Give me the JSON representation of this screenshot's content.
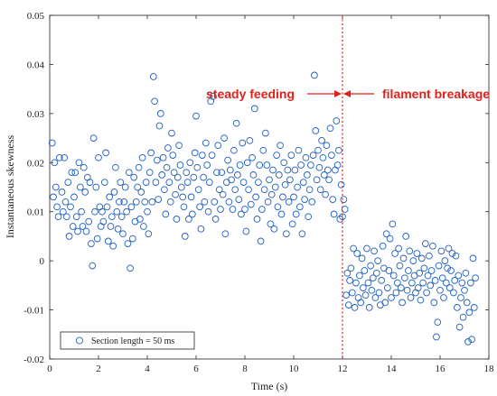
{
  "chart_data": {
    "type": "scatter",
    "xlabel": "Time (s)",
    "ylabel": "Instantaneous skewness",
    "xlim": [
      0,
      18
    ],
    "ylim": [
      -0.02,
      0.05
    ],
    "x_ticks": [
      0,
      2,
      4,
      6,
      8,
      10,
      12,
      14,
      16,
      18
    ],
    "y_ticks": [
      -0.02,
      -0.01,
      0,
      0.01,
      0.02,
      0.03,
      0.04,
      0.05
    ],
    "y_tick_labels": [
      "-0.02",
      "-0.01",
      "0",
      "0.01",
      "0.02",
      "0.03",
      "0.04",
      "0.05"
    ],
    "grid": false,
    "marker": "open-circle",
    "marker_color": "#1f5fbf",
    "legend": {
      "label": "Section length = 50 ms",
      "placement": "bottom-left"
    },
    "breakage_line": {
      "x": 12,
      "color": "#e0201b",
      "style": "dotted"
    },
    "annotations": [
      {
        "text": "steady feeding",
        "arrow": "right",
        "color": "#e0201b"
      },
      {
        "text": "filament breakage",
        "arrow": "left",
        "color": "#e0201b"
      }
    ],
    "points": [
      [
        0.1,
        0.024
      ],
      [
        0.15,
        0.013
      ],
      [
        0.2,
        0.02
      ],
      [
        0.25,
        0.015
      ],
      [
        0.3,
        0.011
      ],
      [
        0.35,
        0.009
      ],
      [
        0.4,
        0.021
      ],
      [
        0.5,
        0.014
      ],
      [
        0.55,
        0.01
      ],
      [
        0.6,
        0.021
      ],
      [
        0.65,
        0.012
      ],
      [
        0.7,
        0.009
      ],
      [
        0.75,
        0.016
      ],
      [
        0.8,
        0.005
      ],
      [
        0.85,
        0.011
      ],
      [
        0.9,
        0.018
      ],
      [
        0.95,
        0.007
      ],
      [
        1.0,
        0.013
      ],
      [
        1.05,
        0.018
      ],
      [
        1.1,
        0.009
      ],
      [
        1.15,
        0.006
      ],
      [
        1.2,
        0.02
      ],
      [
        1.25,
        0.015
      ],
      [
        1.3,
        0.01
      ],
      [
        1.35,
        0.007
      ],
      [
        1.4,
        0.019
      ],
      [
        1.45,
        0.014
      ],
      [
        1.5,
        0.006
      ],
      [
        1.55,
        0.017
      ],
      [
        1.6,
        0.008
      ],
      [
        1.65,
        0.016
      ],
      [
        1.7,
        0.0035
      ],
      [
        1.75,
        -0.001
      ],
      [
        1.8,
        0.025
      ],
      [
        1.85,
        0.01
      ],
      [
        1.9,
        0.015
      ],
      [
        1.95,
        0.0045
      ],
      [
        2.0,
        0.021
      ],
      [
        2.05,
        0.011
      ],
      [
        2.1,
        0.007
      ],
      [
        2.15,
        0.01
      ],
      [
        2.2,
        0.008
      ],
      [
        2.25,
        0.016
      ],
      [
        2.3,
        0.022
      ],
      [
        2.35,
        0.011
      ],
      [
        2.4,
        0.004
      ],
      [
        2.45,
        0.013
      ],
      [
        2.5,
        0.007
      ],
      [
        2.55,
        0.009
      ],
      [
        2.6,
        0.003
      ],
      [
        2.65,
        0.014
      ],
      [
        2.7,
        0.019
      ],
      [
        2.75,
        0.01
      ],
      [
        2.8,
        0.0065
      ],
      [
        2.85,
        0.012
      ],
      [
        2.9,
        0.016
      ],
      [
        2.95,
        0.009
      ],
      [
        3.0,
        0.0055
      ],
      [
        3.05,
        0.012
      ],
      [
        3.1,
        0.015
      ],
      [
        3.15,
        0.01
      ],
      [
        3.2,
        0.0035
      ],
      [
        3.25,
        0.018
      ],
      [
        3.3,
        -0.0015
      ],
      [
        3.35,
        0.011
      ],
      [
        3.4,
        0.0045
      ],
      [
        3.45,
        0.017
      ],
      [
        3.5,
        0.008
      ],
      [
        3.55,
        0.012
      ],
      [
        3.6,
        0.015
      ],
      [
        3.65,
        0.019
      ],
      [
        3.7,
        0.0085
      ],
      [
        3.75,
        0.014
      ],
      [
        3.8,
        0.021
      ],
      [
        3.85,
        0.007
      ],
      [
        3.9,
        0.012
      ],
      [
        3.95,
        0.016
      ],
      [
        4.0,
        0.01
      ],
      [
        4.05,
        0.0055
      ],
      [
        4.1,
        0.018
      ],
      [
        4.15,
        0.022
      ],
      [
        4.2,
        0.012
      ],
      [
        4.25,
        0.0375
      ],
      [
        4.3,
        0.0325
      ],
      [
        4.35,
        0.016
      ],
      [
        4.4,
        0.0205
      ],
      [
        4.45,
        0.0125
      ],
      [
        4.5,
        0.0275
      ],
      [
        4.55,
        0.03
      ],
      [
        4.6,
        0.0175
      ],
      [
        4.65,
        0.021
      ],
      [
        4.7,
        0.0145
      ],
      [
        4.75,
        0.0095
      ],
      [
        4.8,
        0.019
      ],
      [
        4.85,
        0.023
      ],
      [
        4.9,
        0.016
      ],
      [
        4.95,
        0.012
      ],
      [
        5.0,
        0.026
      ],
      [
        5.05,
        0.0215
      ],
      [
        5.1,
        0.018
      ],
      [
        5.15,
        0.0135
      ],
      [
        5.2,
        0.0085
      ],
      [
        5.25,
        0.017
      ],
      [
        5.3,
        0.0235
      ],
      [
        5.35,
        0.0195
      ],
      [
        5.4,
        0.015
      ],
      [
        5.45,
        0.013
      ],
      [
        5.5,
        0.011
      ],
      [
        5.55,
        0.005
      ],
      [
        5.6,
        0.018
      ],
      [
        5.65,
        0.016
      ],
      [
        5.7,
        0.0085
      ],
      [
        5.75,
        0.02
      ],
      [
        5.8,
        0.013
      ],
      [
        5.85,
        0.0095
      ],
      [
        5.9,
        0.017
      ],
      [
        5.95,
        0.022
      ],
      [
        6.0,
        0.0295
      ],
      [
        6.05,
        0.019
      ],
      [
        6.1,
        0.0145
      ],
      [
        6.15,
        0.011
      ],
      [
        6.2,
        0.0065
      ],
      [
        6.25,
        0.0215
      ],
      [
        6.3,
        0.017
      ],
      [
        6.35,
        0.012
      ],
      [
        6.4,
        0.024
      ],
      [
        6.45,
        0.0195
      ],
      [
        6.5,
        0.01
      ],
      [
        6.55,
        0.016
      ],
      [
        6.6,
        0.0325
      ],
      [
        6.65,
        0.0215
      ],
      [
        6.7,
        0.0335
      ],
      [
        6.75,
        0.012
      ],
      [
        6.8,
        0.0085
      ],
      [
        6.85,
        0.018
      ],
      [
        6.9,
        0.0235
      ],
      [
        6.95,
        0.0145
      ],
      [
        7.0,
        0.0105
      ],
      [
        7.05,
        0.018
      ],
      [
        7.1,
        0.0135
      ],
      [
        7.15,
        0.025
      ],
      [
        7.2,
        0.0055
      ],
      [
        7.25,
        0.016
      ],
      [
        7.3,
        0.0205
      ],
      [
        7.35,
        0.012
      ],
      [
        7.4,
        0.0185
      ],
      [
        7.45,
        0.0165
      ],
      [
        7.5,
        0.0105
      ],
      [
        7.55,
        0.0225
      ],
      [
        7.6,
        0.0145
      ],
      [
        7.65,
        0.028
      ],
      [
        7.7,
        0.0175
      ],
      [
        7.75,
        0.0125
      ],
      [
        7.8,
        0.0195
      ],
      [
        7.85,
        0.0095
      ],
      [
        7.9,
        0.024
      ],
      [
        7.95,
        0.016
      ],
      [
        8.0,
        0.0105
      ],
      [
        8.05,
        0.006
      ],
      [
        8.1,
        0.02
      ],
      [
        8.15,
        0.0145
      ],
      [
        8.2,
        0.0245
      ],
      [
        8.25,
        0.0115
      ],
      [
        8.3,
        0.021
      ],
      [
        8.35,
        0.0175
      ],
      [
        8.4,
        0.031
      ],
      [
        8.45,
        0.013
      ],
      [
        8.5,
        0.0085
      ],
      [
        8.55,
        0.016
      ],
      [
        8.6,
        0.0195
      ],
      [
        8.65,
        0.004
      ],
      [
        8.7,
        0.0105
      ],
      [
        8.75,
        0.0225
      ],
      [
        8.8,
        0.0145
      ],
      [
        8.85,
        0.026
      ],
      [
        8.9,
        0.0195
      ],
      [
        8.95,
        0.012
      ],
      [
        9.0,
        0.0165
      ],
      [
        9.05,
        0.0075
      ],
      [
        9.1,
        0.0135
      ],
      [
        9.15,
        0.0185
      ],
      [
        9.2,
        0.0065
      ],
      [
        9.25,
        0.015
      ],
      [
        9.3,
        0.0215
      ],
      [
        9.35,
        0.011
      ],
      [
        9.4,
        0.0175
      ],
      [
        9.45,
        0.0235
      ],
      [
        9.5,
        0.0095
      ],
      [
        9.55,
        0.013
      ],
      [
        9.6,
        0.02
      ],
      [
        9.65,
        0.0155
      ],
      [
        9.7,
        0.0055
      ],
      [
        9.75,
        0.0185
      ],
      [
        9.8,
        0.012
      ],
      [
        9.85,
        0.0165
      ],
      [
        9.9,
        0.0215
      ],
      [
        9.95,
        0.0075
      ],
      [
        10.0,
        0.013
      ],
      [
        10.05,
        0.0185
      ],
      [
        10.1,
        0.0095
      ],
      [
        10.15,
        0.015
      ],
      [
        10.2,
        0.0225
      ],
      [
        10.25,
        0.011
      ],
      [
        10.3,
        0.0195
      ],
      [
        10.35,
        0.0055
      ],
      [
        10.4,
        0.016
      ],
      [
        10.45,
        0.0125
      ],
      [
        10.5,
        0.021
      ],
      [
        10.55,
        0.0175
      ],
      [
        10.6,
        0.009
      ],
      [
        10.65,
        0.0145
      ],
      [
        10.7,
        0.0195
      ],
      [
        10.75,
        0.012
      ],
      [
        10.8,
        0.0215
      ],
      [
        10.85,
        0.0378
      ],
      [
        10.9,
        0.0265
      ],
      [
        10.95,
        0.0165
      ],
      [
        11.0,
        0.0225
      ],
      [
        11.05,
        0.019
      ],
      [
        11.1,
        0.0145
      ],
      [
        11.15,
        0.0245
      ],
      [
        11.2,
        0.021
      ],
      [
        11.25,
        0.0175
      ],
      [
        11.3,
        0.0135
      ],
      [
        11.35,
        0.0235
      ],
      [
        11.4,
        0.0185
      ],
      [
        11.45,
        0.0165
      ],
      [
        11.5,
        0.027
      ],
      [
        11.55,
        0.0215
      ],
      [
        11.6,
        0.0125
      ],
      [
        11.65,
        0.0095
      ],
      [
        11.7,
        0.0185
      ],
      [
        11.75,
        0.0285
      ],
      [
        11.8,
        0.0195
      ],
      [
        11.85,
        0.0225
      ],
      [
        11.9,
        0.0085
      ],
      [
        11.95,
        0.0155
      ],
      [
        12.0,
        0.009
      ],
      [
        12.05,
        0.0125
      ],
      [
        12.1,
        0.0105
      ],
      [
        12.15,
        -0.007
      ],
      [
        12.2,
        -0.0025
      ],
      [
        12.25,
        -0.009
      ],
      [
        12.3,
        -0.004
      ],
      [
        12.35,
        -0.0015
      ],
      [
        12.4,
        -0.0065
      ],
      [
        12.45,
        0.0025
      ],
      [
        12.5,
        -0.0095
      ],
      [
        12.55,
        -0.0045
      ],
      [
        12.6,
        0.0015
      ],
      [
        12.65,
        -0.0075
      ],
      [
        12.7,
        -0.003
      ],
      [
        12.75,
        -0.0085
      ],
      [
        12.8,
        0.0005
      ],
      [
        12.85,
        -0.0055
      ],
      [
        12.9,
        -0.002
      ],
      [
        12.95,
        -0.007
      ],
      [
        13.0,
        0.0025
      ],
      [
        13.05,
        -0.0045
      ],
      [
        13.1,
        -0.0095
      ],
      [
        13.15,
        -0.001
      ],
      [
        13.2,
        -0.006
      ],
      [
        13.25,
        -0.0035
      ],
      [
        13.3,
        0.002
      ],
      [
        13.35,
        -0.0075
      ],
      [
        13.4,
        -0.0025
      ],
      [
        13.45,
        0.0
      ],
      [
        13.5,
        -0.0065
      ],
      [
        13.55,
        -0.009
      ],
      [
        13.6,
        -0.004
      ],
      [
        13.65,
        0.003
      ],
      [
        13.7,
        -0.0015
      ],
      [
        13.75,
        -0.0085
      ],
      [
        13.8,
        0.0055
      ],
      [
        13.85,
        -0.0055
      ],
      [
        13.9,
        -0.002
      ],
      [
        13.95,
        0.0045
      ],
      [
        14.0,
        -0.0075
      ],
      [
        14.05,
        0.0075
      ],
      [
        14.1,
        -0.003
      ],
      [
        14.15,
        0.0015
      ],
      [
        14.2,
        -0.0065
      ],
      [
        14.25,
        -0.0045
      ],
      [
        14.3,
        0.0025
      ],
      [
        14.35,
        -0.001
      ],
      [
        14.4,
        -0.0055
      ],
      [
        14.45,
        -0.0085
      ],
      [
        14.5,
        0.0005
      ],
      [
        14.55,
        -0.0035
      ],
      [
        14.6,
        0.005
      ],
      [
        14.65,
        -0.006
      ],
      [
        14.7,
        -0.002
      ],
      [
        14.75,
        0.002
      ],
      [
        14.8,
        -0.0075
      ],
      [
        14.85,
        -0.0045
      ],
      [
        14.9,
        0.0
      ],
      [
        14.95,
        -0.003
      ],
      [
        15.0,
        -0.0065
      ],
      [
        15.05,
        0.0015
      ],
      [
        15.1,
        -0.0055
      ],
      [
        15.15,
        -0.0025
      ],
      [
        15.2,
        -0.008
      ],
      [
        15.25,
        0.0005
      ],
      [
        15.3,
        -0.0045
      ],
      [
        15.35,
        -0.0015
      ],
      [
        15.4,
        0.0035
      ],
      [
        15.45,
        -0.0065
      ],
      [
        15.5,
        -0.003
      ],
      [
        15.55,
        0.001
      ],
      [
        15.6,
        -0.005
      ],
      [
        15.65,
        -0.002
      ],
      [
        15.7,
        0.003
      ],
      [
        15.75,
        -0.0085
      ],
      [
        15.8,
        -0.004
      ],
      [
        15.85,
        -0.0155
      ],
      [
        15.9,
        -0.0125
      ],
      [
        15.95,
        -0.001
      ],
      [
        16.0,
        -0.006
      ],
      [
        16.05,
        0.002
      ],
      [
        16.1,
        -0.0035
      ],
      [
        16.15,
        -0.0075
      ],
      [
        16.2,
        0.0
      ],
      [
        16.25,
        -0.0045
      ],
      [
        16.3,
        -0.0015
      ],
      [
        16.35,
        0.0025
      ],
      [
        16.4,
        -0.0055
      ],
      [
        16.45,
        -0.002
      ],
      [
        16.5,
        0.0015
      ],
      [
        16.55,
        -0.0065
      ],
      [
        16.6,
        -0.004
      ],
      [
        16.65,
        0.001
      ],
      [
        16.7,
        -0.0095
      ],
      [
        16.75,
        -0.003
      ],
      [
        16.8,
        -0.0135
      ],
      [
        16.85,
        -0.0075
      ],
      [
        16.9,
        -0.0045
      ],
      [
        16.95,
        -0.0115
      ],
      [
        17.0,
        -0.006
      ],
      [
        17.05,
        -0.0025
      ],
      [
        17.1,
        -0.0085
      ],
      [
        17.15,
        -0.0165
      ],
      [
        17.2,
        -0.0105
      ],
      [
        17.25,
        -0.0045
      ],
      [
        17.3,
        -0.016
      ],
      [
        17.35,
        0.0005
      ],
      [
        17.4,
        -0.0095
      ],
      [
        17.45,
        -0.0035
      ]
    ]
  }
}
